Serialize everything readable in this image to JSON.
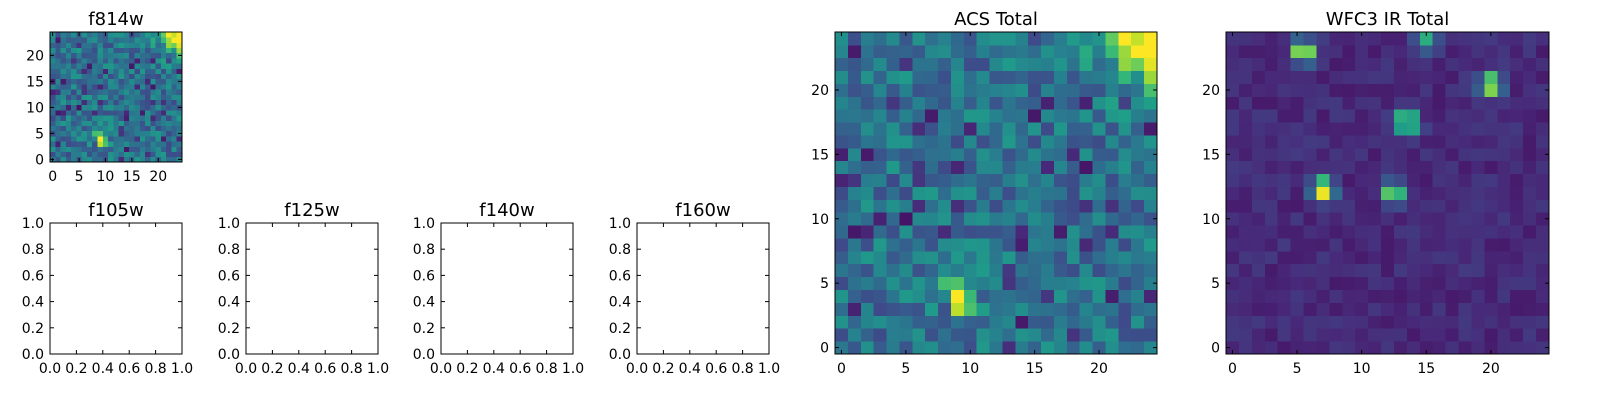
{
  "chart_data": [
    {
      "type": "heatmap",
      "title": "f814w",
      "xlim": [
        -0.5,
        24.5
      ],
      "ylim": [
        -0.5,
        24.5
      ],
      "xticks": [
        0,
        5,
        10,
        15,
        20
      ],
      "yticks": [
        0,
        5,
        10,
        15,
        20
      ],
      "image": "acs",
      "colormap": "viridis"
    },
    {
      "type": "heatmap",
      "title": "ACS Total",
      "xlim": [
        -0.5,
        24.5
      ],
      "ylim": [
        -0.5,
        24.5
      ],
      "xticks": [
        0,
        5,
        10,
        15,
        20
      ],
      "yticks": [
        0,
        5,
        10,
        15,
        20
      ],
      "image": "acs",
      "colormap": "viridis"
    },
    {
      "type": "heatmap",
      "title": "WFC3 IR Total",
      "xlim": [
        -0.5,
        24.5
      ],
      "ylim": [
        -0.5,
        24.5
      ],
      "xticks": [
        0,
        5,
        10,
        15,
        20
      ],
      "yticks": [
        0,
        5,
        10,
        15,
        20
      ],
      "image": "wfc3",
      "colormap": "viridis"
    },
    {
      "type": "empty",
      "title": "f105w",
      "xlim": [
        0,
        1
      ],
      "ylim": [
        0,
        1
      ],
      "xticks": [
        "0.0",
        "0.2",
        "0.4",
        "0.6",
        "0.8",
        "1.0"
      ],
      "yticks": [
        "0.0",
        "0.2",
        "0.4",
        "0.6",
        "0.8",
        "1.0"
      ]
    },
    {
      "type": "empty",
      "title": "f125w",
      "xlim": [
        0,
        1
      ],
      "ylim": [
        0,
        1
      ],
      "xticks": [
        "0.0",
        "0.2",
        "0.4",
        "0.6",
        "0.8",
        "1.0"
      ],
      "yticks": [
        "0.0",
        "0.2",
        "0.4",
        "0.6",
        "0.8",
        "1.0"
      ]
    },
    {
      "type": "empty",
      "title": "f140w",
      "xlim": [
        0,
        1
      ],
      "ylim": [
        0,
        1
      ],
      "xticks": [
        "0.0",
        "0.2",
        "0.4",
        "0.6",
        "0.8",
        "1.0"
      ],
      "yticks": [
        "0.0",
        "0.2",
        "0.4",
        "0.6",
        "0.8",
        "1.0"
      ]
    },
    {
      "type": "empty",
      "title": "f160w",
      "xlim": [
        0,
        1
      ],
      "ylim": [
        0,
        1
      ],
      "xticks": [
        "0.0",
        "0.2",
        "0.4",
        "0.6",
        "0.8",
        "1.0"
      ],
      "yticks": [
        "0.0",
        "0.2",
        "0.4",
        "0.6",
        "0.8",
        "1.0"
      ]
    }
  ]
}
